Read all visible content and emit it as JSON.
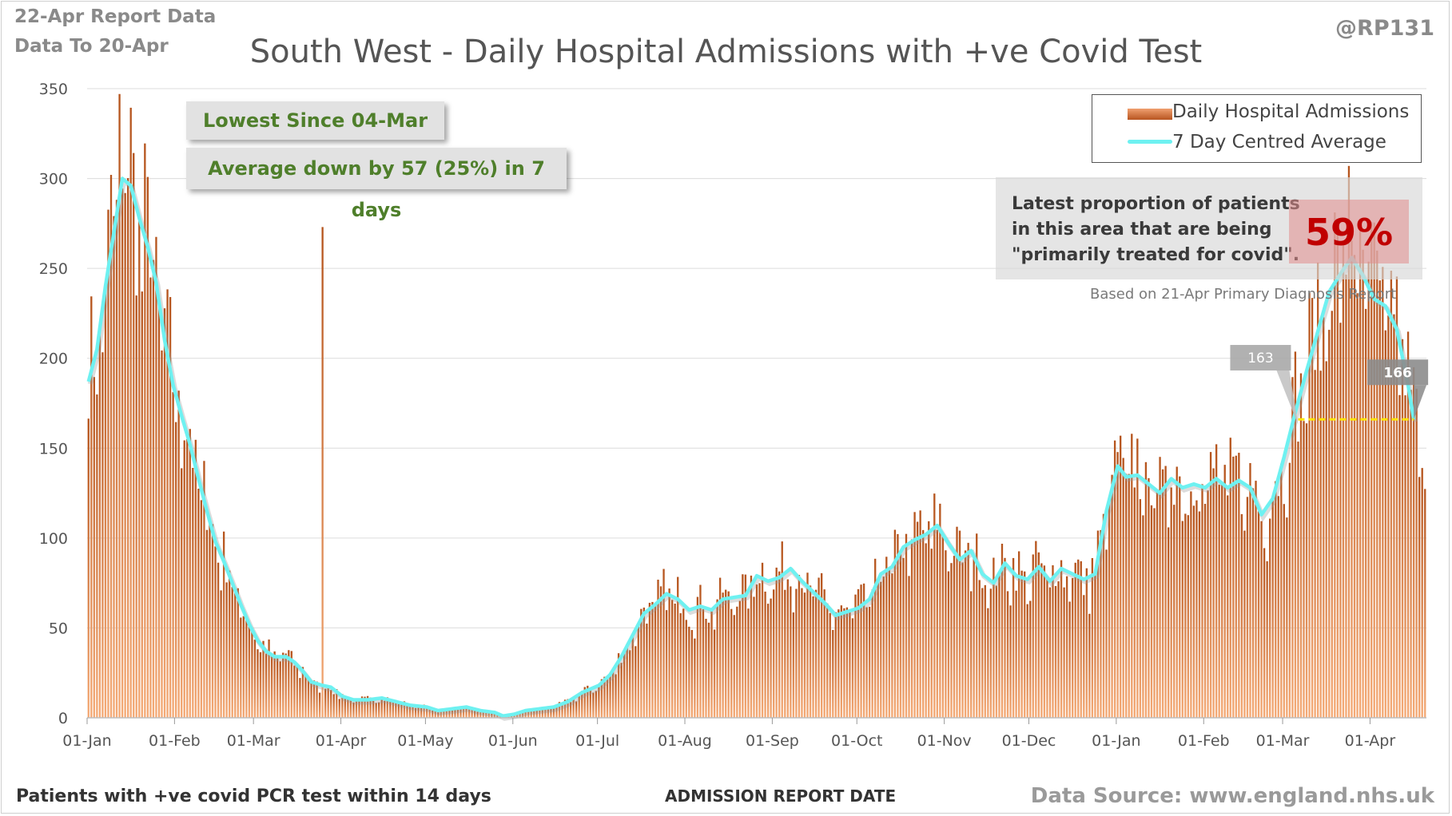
{
  "header": {
    "report_date": "22-Apr Report Data",
    "data_to": "Data To 20-Apr",
    "handle": "@RP131",
    "title": "South West - Daily Hospital Admissions with +ve Covid Test"
  },
  "callouts": {
    "lowest": "Lowest Since 04-Mar",
    "average": "Average down by 57 (25%) in 7 days"
  },
  "legend": {
    "bars_label": "Daily Hospital Admissions",
    "line_label": "7 Day Centred Average"
  },
  "proportion": {
    "text": "Latest proportion of patients\nin this area that are being\n\"primarily treated for covid\".",
    "percent": "59%",
    "note": "Based on 21-Apr Primary Diagnosis Report"
  },
  "footer": {
    "left": "Patients with +ve covid PCR test within 14 days",
    "xlabel": "ADMISSION REPORT DATE",
    "source": "Data Source: www.england.nhs.uk"
  },
  "colors": {
    "bar_light": "#f4aa76",
    "bar_dark": "#b5541d",
    "average_line": "#6ef1f1",
    "reference_line": "#ffe600",
    "callout_text": "#4f7f2b",
    "percent": "#c00000"
  },
  "chart_data": {
    "type": "bar",
    "title": "South West - Daily Hospital Admissions with +ve Covid Test",
    "xlabel": "ADMISSION REPORT DATE",
    "ylabel": "",
    "ylim": [
      0,
      350
    ],
    "yticks": [
      0,
      50,
      100,
      150,
      200,
      250,
      300,
      350
    ],
    "grid": true,
    "legend_position": "top-right",
    "x_start": "2021-01-01",
    "x_end": "2022-04-20",
    "x_ticks": [
      {
        "date": "2021-01-01",
        "label": "01-Jan"
      },
      {
        "date": "2021-02-01",
        "label": "01-Feb"
      },
      {
        "date": "2021-03-01",
        "label": "01-Mar"
      },
      {
        "date": "2021-04-01",
        "label": "01-Apr"
      },
      {
        "date": "2021-05-01",
        "label": "01-May"
      },
      {
        "date": "2021-06-01",
        "label": "01-Jun"
      },
      {
        "date": "2021-07-01",
        "label": "01-Jul"
      },
      {
        "date": "2021-08-01",
        "label": "01-Aug"
      },
      {
        "date": "2021-09-01",
        "label": "01-Sep"
      },
      {
        "date": "2021-10-01",
        "label": "01-Oct"
      },
      {
        "date": "2021-11-01",
        "label": "01-Nov"
      },
      {
        "date": "2021-12-01",
        "label": "01-Dec"
      },
      {
        "date": "2022-01-01",
        "label": "01-Jan"
      },
      {
        "date": "2022-02-01",
        "label": "01-Feb"
      },
      {
        "date": "2022-03-01",
        "label": "01-Mar"
      },
      {
        "date": "2022-04-01",
        "label": "01-Apr"
      }
    ],
    "series": [
      {
        "name": "7 Day Centred Average",
        "type": "line",
        "points": [
          [
            "2021-01-01",
            187
          ],
          [
            "2021-01-04",
            205
          ],
          [
            "2021-01-07",
            240
          ],
          [
            "2021-01-10",
            270
          ],
          [
            "2021-01-13",
            300
          ],
          [
            "2021-01-16",
            296
          ],
          [
            "2021-01-19",
            278
          ],
          [
            "2021-01-22",
            262
          ],
          [
            "2021-01-25",
            242
          ],
          [
            "2021-01-28",
            210
          ],
          [
            "2021-01-31",
            185
          ],
          [
            "2021-02-03",
            168
          ],
          [
            "2021-02-06",
            152
          ],
          [
            "2021-02-09",
            133
          ],
          [
            "2021-02-12",
            115
          ],
          [
            "2021-02-15",
            98
          ],
          [
            "2021-02-18",
            87
          ],
          [
            "2021-02-21",
            75
          ],
          [
            "2021-02-24",
            63
          ],
          [
            "2021-02-27",
            52
          ],
          [
            "2021-03-02",
            43
          ],
          [
            "2021-03-05",
            37
          ],
          [
            "2021-03-08",
            34
          ],
          [
            "2021-03-12",
            34
          ],
          [
            "2021-03-15",
            31
          ],
          [
            "2021-03-18",
            26
          ],
          [
            "2021-03-21",
            20
          ],
          [
            "2021-03-25",
            18
          ],
          [
            "2021-03-28",
            17
          ],
          [
            "2021-04-01",
            12
          ],
          [
            "2021-04-05",
            10
          ],
          [
            "2021-04-10",
            10
          ],
          [
            "2021-04-15",
            11
          ],
          [
            "2021-04-20",
            9
          ],
          [
            "2021-04-25",
            7
          ],
          [
            "2021-05-01",
            6
          ],
          [
            "2021-05-05",
            4
          ],
          [
            "2021-05-10",
            5
          ],
          [
            "2021-05-15",
            6
          ],
          [
            "2021-05-20",
            4
          ],
          [
            "2021-05-25",
            3
          ],
          [
            "2021-05-28",
            1
          ],
          [
            "2021-06-01",
            2
          ],
          [
            "2021-06-05",
            4
          ],
          [
            "2021-06-10",
            5
          ],
          [
            "2021-06-15",
            6
          ],
          [
            "2021-06-20",
            9
          ],
          [
            "2021-06-25",
            14
          ],
          [
            "2021-07-01",
            18
          ],
          [
            "2021-07-05",
            24
          ],
          [
            "2021-07-09",
            34
          ],
          [
            "2021-07-13",
            46
          ],
          [
            "2021-07-17",
            58
          ],
          [
            "2021-07-21",
            63
          ],
          [
            "2021-07-25",
            69
          ],
          [
            "2021-07-29",
            66
          ],
          [
            "2021-08-02",
            60
          ],
          [
            "2021-08-06",
            62
          ],
          [
            "2021-08-10",
            60
          ],
          [
            "2021-08-14",
            66
          ],
          [
            "2021-08-18",
            67
          ],
          [
            "2021-08-22",
            68
          ],
          [
            "2021-08-26",
            79
          ],
          [
            "2021-08-30",
            76
          ],
          [
            "2021-09-03",
            78
          ],
          [
            "2021-09-07",
            83
          ],
          [
            "2021-09-11",
            76
          ],
          [
            "2021-09-15",
            70
          ],
          [
            "2021-09-19",
            64
          ],
          [
            "2021-09-23",
            57
          ],
          [
            "2021-09-27",
            59
          ],
          [
            "2021-10-01",
            61
          ],
          [
            "2021-10-05",
            66
          ],
          [
            "2021-10-09",
            80
          ],
          [
            "2021-10-13",
            84
          ],
          [
            "2021-10-17",
            95
          ],
          [
            "2021-10-21",
            99
          ],
          [
            "2021-10-25",
            102
          ],
          [
            "2021-10-29",
            107
          ],
          [
            "2021-11-02",
            97
          ],
          [
            "2021-11-06",
            88
          ],
          [
            "2021-11-10",
            93
          ],
          [
            "2021-11-14",
            80
          ],
          [
            "2021-11-18",
            75
          ],
          [
            "2021-11-22",
            86
          ],
          [
            "2021-11-26",
            79
          ],
          [
            "2021-11-30",
            77
          ],
          [
            "2021-12-04",
            84
          ],
          [
            "2021-12-08",
            76
          ],
          [
            "2021-12-12",
            83
          ],
          [
            "2021-12-16",
            80
          ],
          [
            "2021-12-20",
            77
          ],
          [
            "2021-12-24",
            80
          ],
          [
            "2021-12-28",
            115
          ],
          [
            "2022-01-01",
            140
          ],
          [
            "2022-01-04",
            134
          ],
          [
            "2022-01-08",
            135
          ],
          [
            "2022-01-12",
            130
          ],
          [
            "2022-01-16",
            125
          ],
          [
            "2022-01-20",
            133
          ],
          [
            "2022-01-24",
            128
          ],
          [
            "2022-01-28",
            130
          ],
          [
            "2022-02-01",
            128
          ],
          [
            "2022-02-05",
            133
          ],
          [
            "2022-02-09",
            128
          ],
          [
            "2022-02-13",
            132
          ],
          [
            "2022-02-17",
            128
          ],
          [
            "2022-02-21",
            113
          ],
          [
            "2022-02-25",
            122
          ],
          [
            "2022-03-01",
            145
          ],
          [
            "2022-03-05",
            170
          ],
          [
            "2022-03-09",
            193
          ],
          [
            "2022-03-13",
            215
          ],
          [
            "2022-03-17",
            237
          ],
          [
            "2022-03-21",
            247
          ],
          [
            "2022-03-25",
            256
          ],
          [
            "2022-03-29",
            246
          ],
          [
            "2022-04-02",
            233
          ],
          [
            "2022-04-06",
            229
          ],
          [
            "2022-04-10",
            216
          ],
          [
            "2022-04-14",
            185
          ],
          [
            "2022-04-16",
            166
          ]
        ]
      },
      {
        "name": "Daily Hospital Admissions",
        "type": "bar",
        "note": "daily values approximated as the centred average with day-to-day variation",
        "peak_values": [
          [
            "2021-01-12",
            347
          ],
          [
            "2021-03-25",
            273
          ],
          [
            "2022-03-24",
            307
          ]
        ]
      }
    ],
    "annotations": [
      {
        "label": "163",
        "date": "2022-03-06",
        "value": 163
      },
      {
        "label": "166",
        "date": "2022-04-16",
        "value": 166
      }
    ]
  }
}
